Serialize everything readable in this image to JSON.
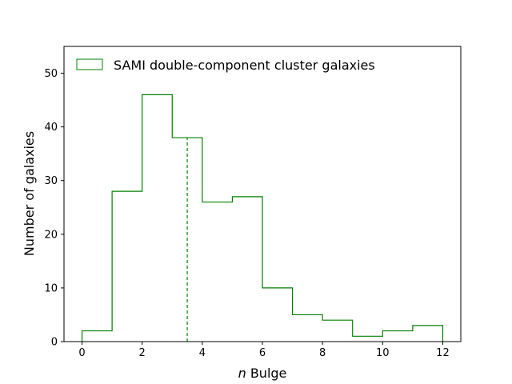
{
  "chart_data": {
    "type": "histogram",
    "color": "#008000",
    "bin_edges": [
      0,
      1,
      2,
      3,
      4,
      5,
      6,
      7,
      8,
      9,
      10,
      11,
      12
    ],
    "counts": [
      2,
      28,
      46,
      38,
      26,
      27,
      10,
      5,
      4,
      1,
      2,
      3
    ],
    "series_name": "SAMI double-component cluster galaxies",
    "median_line": {
      "x": 3.5,
      "style": "dashed"
    },
    "xlabel_italic": "n",
    "xlabel_rest": " Bulge",
    "ylabel": "Number of galaxies",
    "xlim": [
      -0.6,
      12.6
    ],
    "ylim": [
      0,
      55
    ],
    "xticks": [
      0,
      2,
      4,
      6,
      8,
      10,
      12
    ],
    "yticks": [
      0,
      10,
      20,
      30,
      40,
      50
    ],
    "legend_position": "upper-left",
    "grid": false
  }
}
